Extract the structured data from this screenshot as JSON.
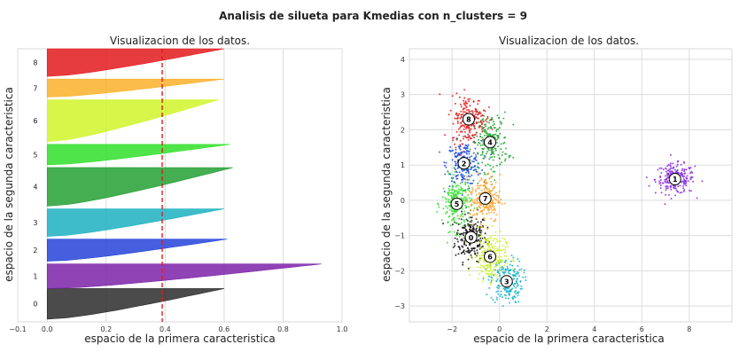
{
  "figure": {
    "suptitle": "Analisis de silueta para Kmedias con n_clusters = 9"
  },
  "chart_data": [
    {
      "type": "area",
      "kind": "silhouette",
      "title": "Visualizacion de los datos.",
      "xlabel": "espacio de la primera caracteristica",
      "ylabel": "espacio de la segunda caracteristica",
      "xlim": [
        -0.1,
        1.0
      ],
      "xticks": [
        -0.1,
        0.0,
        0.2,
        0.4,
        0.6,
        0.8,
        1.0
      ],
      "xtick_labels": [
        "−0.1",
        "0.0",
        "0.2",
        "0.4",
        "0.6",
        "0.8",
        "1.0"
      ],
      "ylim": [
        0,
        1000
      ],
      "grid": true,
      "average_silhouette": 0.39,
      "average_line_color": "#e41a1c",
      "clusters": [
        {
          "label": "0",
          "y_start": 10,
          "y_end": 122,
          "max": 0.6,
          "min": 0.0,
          "color": "#2b2b2b"
        },
        {
          "label": "1",
          "y_start": 122,
          "y_end": 212,
          "max": 0.93,
          "min": 0.0,
          "color": "#7b22a8"
        },
        {
          "label": "2",
          "y_start": 222,
          "y_end": 303,
          "max": 0.61,
          "min": 0.0,
          "color": "#2443d9"
        },
        {
          "label": "3",
          "y_start": 313,
          "y_end": 414,
          "max": 0.6,
          "min": 0.0,
          "color": "#1db0c1"
        },
        {
          "label": "4",
          "y_start": 424,
          "y_end": 565,
          "max": 0.63,
          "min": 0.0,
          "color": "#23a033"
        },
        {
          "label": "5",
          "y_start": 575,
          "y_end": 650,
          "max": 0.62,
          "min": 0.0,
          "color": "#30e02a"
        },
        {
          "label": "6",
          "y_start": 660,
          "y_end": 813,
          "max": 0.58,
          "min": 0.0,
          "color": "#d1f52a"
        },
        {
          "label": "7",
          "y_start": 823,
          "y_end": 889,
          "max": 0.6,
          "min": 0.0,
          "color": "#fbb02a"
        },
        {
          "label": "8",
          "y_start": 899,
          "y_end": 1000,
          "max": 0.6,
          "min": 0.0,
          "color": "#e31a1c"
        }
      ]
    },
    {
      "type": "scatter",
      "title": "Visualizacion de los datos.",
      "xlabel": "espacio de la primera caracteristica",
      "ylabel": "espacio de la segunda caracteristica",
      "xlim": [
        -3.8,
        9.8
      ],
      "ylim": [
        -3.45,
        4.3
      ],
      "xticks": [
        -2,
        0,
        2,
        4,
        6,
        8
      ],
      "xtick_labels": [
        "−2",
        "0",
        "2",
        "4",
        "6",
        "8"
      ],
      "yticks": [
        -3,
        -2,
        -1,
        0,
        1,
        2,
        3,
        4
      ],
      "ytick_labels": [
        "−3",
        "−2",
        "−1",
        "0",
        "1",
        "2",
        "3",
        "4"
      ],
      "grid": true,
      "clusters": [
        {
          "label": "0",
          "center": [
            -1.2,
            -1.05
          ],
          "spread": [
            0.45,
            0.45
          ],
          "count": 220,
          "color": "#111111"
        },
        {
          "label": "1",
          "center": [
            7.4,
            0.6
          ],
          "spread": [
            0.55,
            0.28
          ],
          "count": 220,
          "color": "#8a2be2"
        },
        {
          "label": "2",
          "center": [
            -1.5,
            1.05
          ],
          "spread": [
            0.48,
            0.42
          ],
          "count": 220,
          "color": "#1f4fe0"
        },
        {
          "label": "3",
          "center": [
            0.3,
            -2.3
          ],
          "spread": [
            0.45,
            0.42
          ],
          "count": 220,
          "color": "#17b3c8"
        },
        {
          "label": "4",
          "center": [
            -0.4,
            1.65
          ],
          "spread": [
            0.5,
            0.55
          ],
          "count": 220,
          "color": "#22a832"
        },
        {
          "label": "5",
          "center": [
            -1.8,
            -0.1
          ],
          "spread": [
            0.42,
            0.5
          ],
          "count": 220,
          "color": "#2ee02b"
        },
        {
          "label": "6",
          "center": [
            -0.4,
            -1.6
          ],
          "spread": [
            0.45,
            0.45
          ],
          "count": 220,
          "color": "#cdf22b"
        },
        {
          "label": "7",
          "center": [
            -0.6,
            0.05
          ],
          "spread": [
            0.42,
            0.45
          ],
          "count": 220,
          "color": "#ffa229"
        },
        {
          "label": "8",
          "center": [
            -1.3,
            2.3
          ],
          "spread": [
            0.48,
            0.45
          ],
          "count": 220,
          "color": "#e41a1c"
        }
      ]
    }
  ]
}
